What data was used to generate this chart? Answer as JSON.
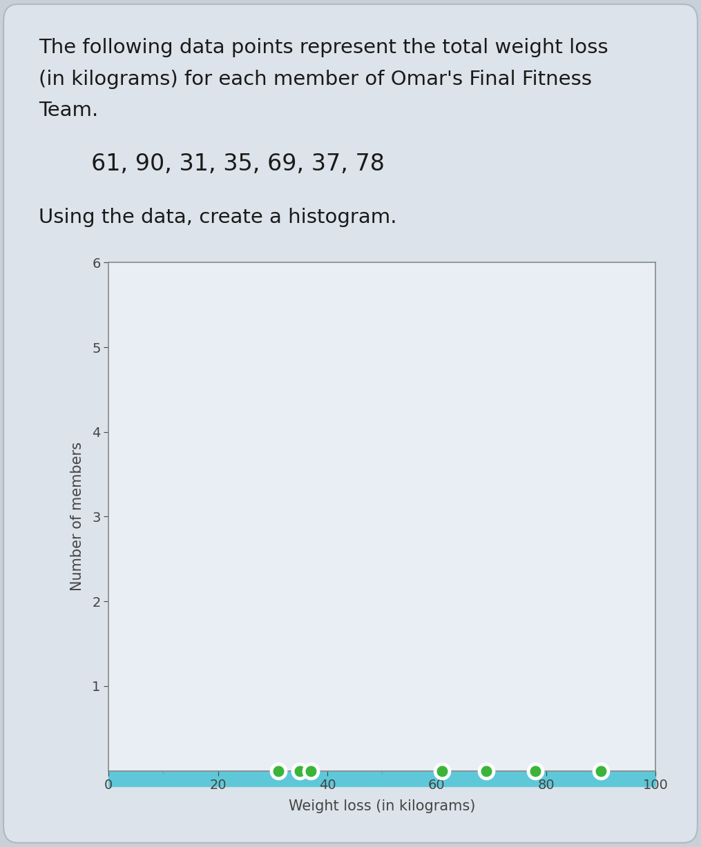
{
  "data_values": [
    61,
    90,
    31,
    35,
    69,
    37,
    78
  ],
  "bins": [
    0,
    20,
    40,
    60,
    80,
    100
  ],
  "xlim": [
    0,
    100
  ],
  "ylim": [
    0,
    6
  ],
  "yticks": [
    1,
    2,
    3,
    4,
    5,
    6
  ],
  "xticks": [
    0,
    20,
    40,
    60,
    80,
    100
  ],
  "xlabel": "Weight loss (in kilograms)",
  "ylabel": "Number of members",
  "bar_color": "#5ec8d8",
  "dot_facecolor": "#3ab53a",
  "dot_edgecolor": "#ffffff",
  "figure_bg": "#c8d0d8",
  "plot_bg": "#dce3ea",
  "box_bg": "#dce3ea",
  "subtitle": "61, 90, 31, 35, 69, 37, 78",
  "instruction": "Using the data, create a histogram.",
  "line1": "The following data points represent the total weight loss",
  "line2": "(in kilograms) for each member of Omar's Final Fitness",
  "line3": "Team.",
  "title_fontsize": 21,
  "subtitle_fontsize": 24,
  "instruction_fontsize": 21,
  "axis_fontsize": 15,
  "tick_fontsize": 14
}
